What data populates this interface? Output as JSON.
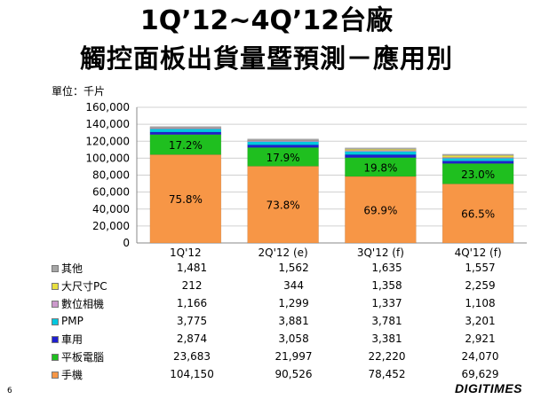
{
  "title_line1": "1Q’12~4Q’12台廠",
  "title_line2": "觸控面板出貨量暨預測－應用別",
  "unit_label": "單位：千片",
  "page_number": "6",
  "logo_text": "DIGITIMES",
  "chart_data": {
    "type": "bar",
    "stacked": true,
    "categories": [
      "1Q'12",
      "2Q'12 (e)",
      "3Q'12 (f)",
      "4Q'12 (f)"
    ],
    "ylim": [
      0,
      160000
    ],
    "yticks": [
      "0",
      "20,000",
      "40,000",
      "60,000",
      "80,000",
      "100,000",
      "120,000",
      "140,000",
      "160,000"
    ],
    "ytick_values": [
      0,
      20000,
      40000,
      60000,
      80000,
      100000,
      120000,
      140000,
      160000
    ],
    "grid": true,
    "series": [
      {
        "name": "手機",
        "color": "#F79646",
        "values": [
          104150,
          90526,
          78452,
          69629
        ],
        "labels": [
          "75.8%",
          "73.8%",
          "69.9%",
          "66.5%"
        ]
      },
      {
        "name": "平板電腦",
        "color": "#1FBF1F",
        "values": [
          23683,
          21997,
          22220,
          24070
        ],
        "labels": [
          "17.2%",
          "17.9%",
          "19.8%",
          "23.0%"
        ]
      },
      {
        "name": "車用",
        "color": "#1F1FCF",
        "values": [
          2874,
          3058,
          3381,
          2921
        ]
      },
      {
        "name": "PMP",
        "color": "#00C8E0",
        "values": [
          3775,
          3881,
          3781,
          3201
        ]
      },
      {
        "name": "數位相機",
        "color": "#CC99CC",
        "values": [
          1166,
          1299,
          1337,
          1108
        ]
      },
      {
        "name": "大尺寸PC",
        "color": "#E8E040",
        "values": [
          212,
          344,
          1358,
          2259
        ]
      },
      {
        "name": "其他",
        "color": "#A6A6A6",
        "values": [
          1481,
          1562,
          1635,
          1557
        ]
      }
    ],
    "table_rows": [
      {
        "name": "其他",
        "color": "#A6A6A6",
        "cells": [
          "1,481",
          "1,562",
          "1,635",
          "1,557"
        ]
      },
      {
        "name": "大尺寸PC",
        "color": "#E8E040",
        "cells": [
          "212",
          "344",
          "1,358",
          "2,259"
        ]
      },
      {
        "name": "數位相機",
        "color": "#CC99CC",
        "cells": [
          "1,166",
          "1,299",
          "1,337",
          "1,108"
        ]
      },
      {
        "name": "PMP",
        "color": "#00C8E0",
        "cells": [
          "3,775",
          "3,881",
          "3,781",
          "3,201"
        ]
      },
      {
        "name": "車用",
        "color": "#1F1FCF",
        "cells": [
          "2,874",
          "3,058",
          "3,381",
          "2,921"
        ]
      },
      {
        "name": "平板電腦",
        "color": "#1FBF1F",
        "cells": [
          "23,683",
          "21,997",
          "22,220",
          "24,070"
        ]
      },
      {
        "name": "手機",
        "color": "#F79646",
        "cells": [
          "104,150",
          "90,526",
          "78,452",
          "69,629"
        ]
      }
    ]
  }
}
